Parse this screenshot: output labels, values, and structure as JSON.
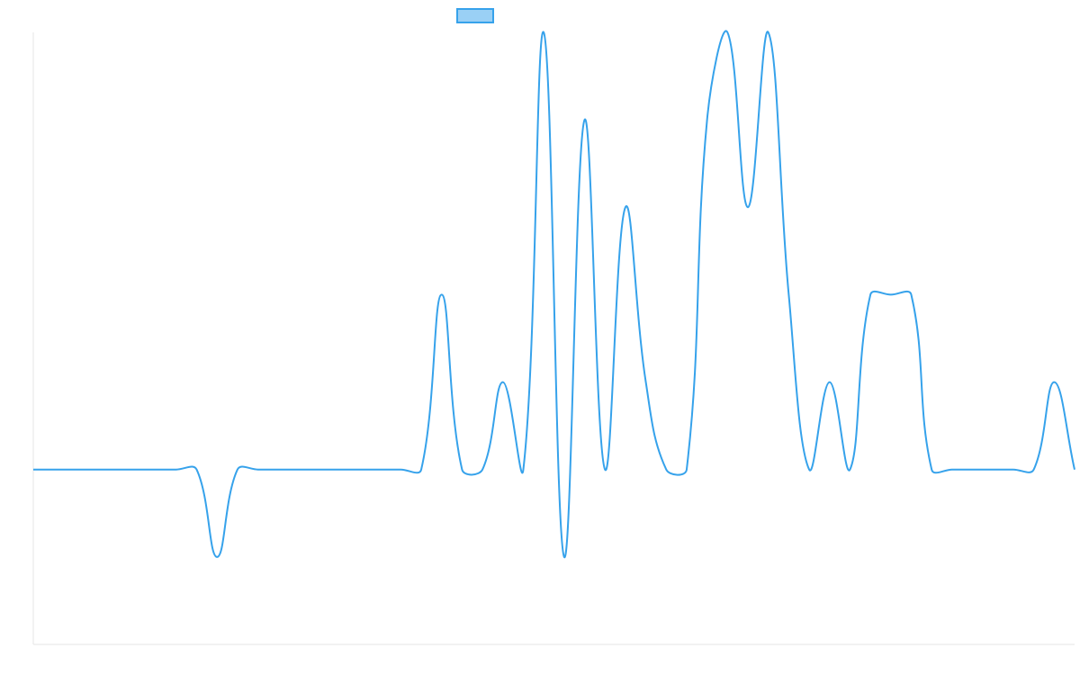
{
  "chart_data": {
    "type": "line",
    "categories": [
      null,
      null,
      null,
      null,
      null,
      null,
      null,
      null,
      null,
      null,
      null,
      null,
      null,
      null,
      null,
      null,
      null,
      null,
      null,
      null,
      null,
      null,
      null,
      null,
      null,
      null,
      null,
      null,
      null,
      null,
      null,
      null,
      null,
      null,
      null,
      null,
      null,
      null,
      null,
      null,
      null,
      null,
      null,
      null,
      null,
      null,
      null,
      null,
      null,
      null,
      null,
      null
    ],
    "series": [
      {
        "color": "#36a2eb",
        "values": [
          0,
          0,
          0,
          0,
          0,
          0,
          0,
          0,
          0,
          -1,
          0,
          0,
          0,
          0,
          0,
          0,
          0,
          0,
          0,
          0,
          2,
          0,
          0,
          1,
          0,
          5,
          -1,
          4,
          0,
          3,
          1,
          0,
          0,
          4,
          5,
          3,
          5,
          2,
          0,
          1,
          0,
          2,
          2,
          2,
          0,
          0,
          0,
          0,
          0,
          0,
          1,
          0
        ]
      }
    ],
    "ylim": [
      -2,
      5
    ]
  }
}
